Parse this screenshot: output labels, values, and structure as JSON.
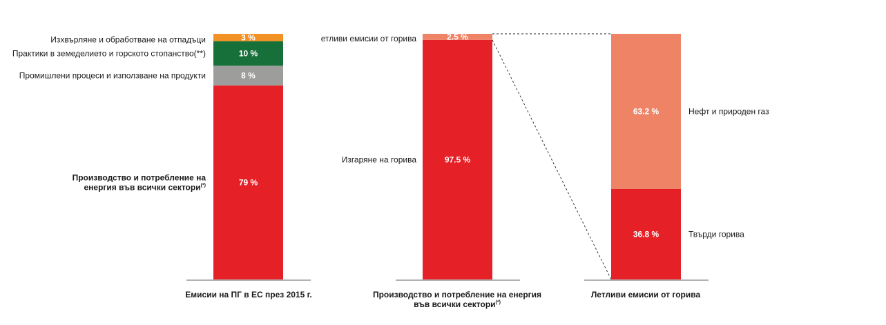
{
  "chart_data": [
    {
      "type": "bar",
      "stacked": true,
      "xlabel": "Емисии на ПГ в ЕС през 2015 г.",
      "unit": "%",
      "segments": [
        {
          "name": "Производство и потребление на енергия във всички сектори",
          "name_line1": "Производство и потребление на",
          "name_line2": "енергия във всички сектори",
          "note": "(*)",
          "value": 79,
          "label": "79 %",
          "color": "#e52127"
        },
        {
          "name": "Промишлени процеси и използване на продукти",
          "value": 8,
          "label": "8 %",
          "color": "#9d9d9c"
        },
        {
          "name": "Практики в земеделието и горското стопанство(**)",
          "value": 10,
          "label": "10 %",
          "color": "#17703a"
        },
        {
          "name": "Изхвърляне и обработване на отпадъци",
          "value": 3,
          "label": "3 %",
          "color": "#f29124"
        }
      ]
    },
    {
      "type": "bar",
      "stacked": true,
      "xlabel_line1": "Производство и потребление на енергия",
      "xlabel_line2": "във всички сектори",
      "xlabel_note": "(*)",
      "unit": "%",
      "segments": [
        {
          "name": "Изгаряне на горива",
          "value": 97.5,
          "label": "97.5 %",
          "color": "#e52127"
        },
        {
          "name": "етливи емисии от горива",
          "value": 2.5,
          "label": "2.5 %",
          "color": "#ee8366"
        }
      ]
    },
    {
      "type": "bar",
      "stacked": true,
      "xlabel": "Летливи емисии от горива",
      "unit": "%",
      "segments": [
        {
          "name": "Твърди горива",
          "value": 36.8,
          "label": "36.8 %",
          "color": "#e52127"
        },
        {
          "name": "Нефт и природен газ",
          "value": 63.2,
          "label": "63.2 %",
          "color": "#ee8366"
        }
      ]
    }
  ]
}
